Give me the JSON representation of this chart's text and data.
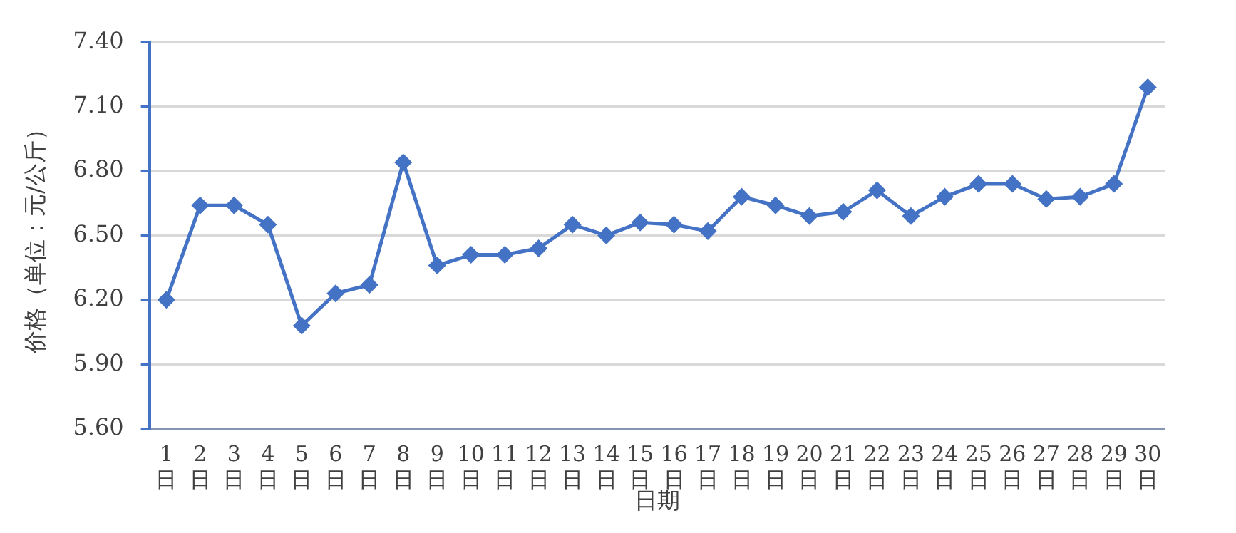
{
  "chart_data": {
    "type": "line",
    "xlabel": "日期",
    "ylabel": "价格（单位：元/公斤）",
    "categories": [
      "1日",
      "2日",
      "3日",
      "4日",
      "5日",
      "6日",
      "7日",
      "8日",
      "9日",
      "10日",
      "11日",
      "12日",
      "13日",
      "14日",
      "15日",
      "16日",
      "17日",
      "18日",
      "19日",
      "20日",
      "21日",
      "22日",
      "23日",
      "24日",
      "25日",
      "26日",
      "27日",
      "28日",
      "29日",
      "30日"
    ],
    "series": [
      {
        "color": "#4472c4",
        "values": [
          6.2,
          6.64,
          6.64,
          6.55,
          6.08,
          6.23,
          6.27,
          6.84,
          6.36,
          6.41,
          6.41,
          6.44,
          6.55,
          6.5,
          6.56,
          6.55,
          6.52,
          6.68,
          6.64,
          6.59,
          6.61,
          6.71,
          6.59,
          6.68,
          6.74,
          6.74,
          6.67,
          6.68,
          6.74,
          7.19
        ]
      }
    ],
    "ylim": [
      5.6,
      7.4
    ],
    "yticks": [
      {
        "value": 5.6,
        "label": "5.60"
      },
      {
        "value": 5.9,
        "label": "5.90"
      },
      {
        "value": 6.2,
        "label": "6.20"
      },
      {
        "value": 6.5,
        "label": "6.50"
      },
      {
        "value": 6.8,
        "label": "6.80"
      },
      {
        "value": 7.1,
        "label": "7.10"
      },
      {
        "value": 7.4,
        "label": "7.40"
      }
    ],
    "grid": "y",
    "legend": false,
    "marker": "diamond",
    "line_style": "solid"
  }
}
